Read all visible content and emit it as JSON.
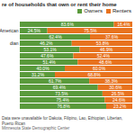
{
  "chart_data": {
    "type": "bar",
    "orientation": "horizontal",
    "stacked": true,
    "data_labels": true,
    "tick_labels": "y",
    "legend": "top-right",
    "title": "re of households that own or rent their home",
    "caption": "Data were unavailable for Dakota, Filipino, Lao, Ethiopian, Liberian, Puerto Rican",
    "source": "Minnesota State Demographic Center",
    "categories": [
      null,
      "American",
      null,
      "dian",
      null,
      null,
      null,
      null,
      null,
      null,
      null,
      null,
      null,
      null
    ],
    "xlim": [
      0,
      100
    ],
    "series": [
      {
        "name": "Owners",
        "color": "#5a9a3c",
        "values": [
          83.6,
          24.5,
          62.4,
          46.2,
          53.1,
          47.6,
          51.4,
          40.0,
          31.2,
          61.7,
          69.4,
          73.5,
          75.4,
          76.8
        ],
        "value_labels": [
          "83.6%",
          "24.5%",
          "62.4%",
          "46.2%",
          "53.1%",
          "47.6%",
          "51.4%",
          "40.0%",
          "31.2%",
          "61.7%",
          "69.4%",
          "73.5%",
          "75.4%",
          "76.8%"
        ]
      },
      {
        "name": "Renters",
        "color": "#e8731f",
        "values": [
          16.4,
          75.5,
          37.6,
          53.8,
          46.9,
          52.4,
          48.6,
          60.0,
          68.8,
          38.3,
          30.6,
          26.5,
          24.6,
          23.2
        ],
        "value_labels": [
          "16.4%",
          "75.5%",
          "37.6%",
          "53.8%",
          "46.9%",
          "52.4%",
          "48.6%",
          "60.0%",
          "68.8%",
          "38.3%",
          "30.6%",
          "26.5%",
          "24.6%",
          "23.2%"
        ]
      }
    ]
  }
}
